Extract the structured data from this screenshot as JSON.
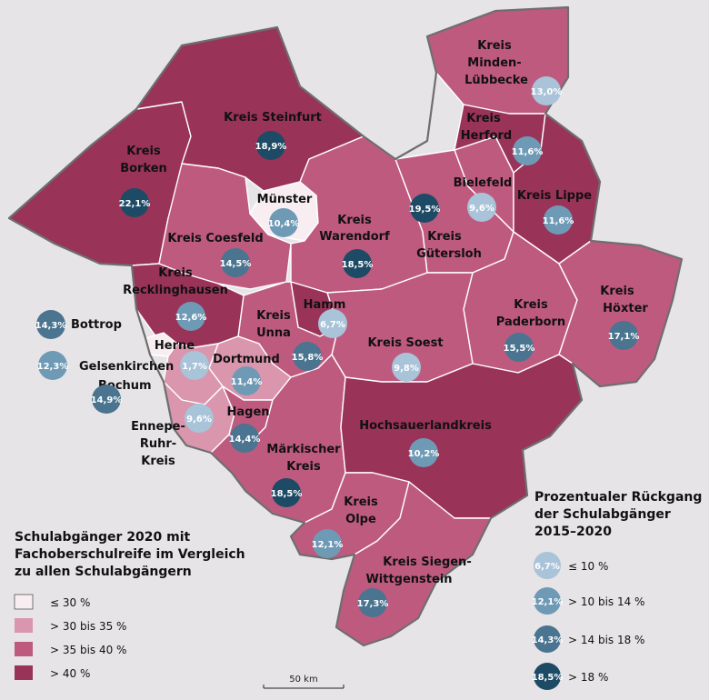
{
  "colors": {
    "class_0": "#f8eef1",
    "class_1": "#d996ac",
    "class_2": "#bf5a7f",
    "class_3": "#9a3358",
    "bubble_0": "#a9c3d8",
    "bubble_1": "#6f9ab6",
    "bubble_2": "#4a748f",
    "bubble_3": "#1d4b66"
  },
  "regions": [
    {
      "name": "Kreis Steinfurt",
      "value": "18,9%"
    },
    {
      "name": "Kreis Borken",
      "value": "22,1%"
    },
    {
      "name": "Münster",
      "value": "10,4%"
    },
    {
      "name": "Kreis Coesfeld",
      "value": "14,5%"
    },
    {
      "name": "Kreis Warendorf",
      "value": "18,5%"
    },
    {
      "name": "Kreis Recklinghausen",
      "value": "12,6%"
    },
    {
      "name": "Kreis Unna",
      "value": "15,8%"
    },
    {
      "name": "Hamm",
      "value": "6,7%"
    },
    {
      "name": "Kreis Soest",
      "value": "9,8%"
    },
    {
      "name": "Dortmund",
      "value": "11,4%"
    },
    {
      "name": "Herne",
      "value": "1,7%"
    },
    {
      "name": "Bottrop",
      "value": "14,3%"
    },
    {
      "name": "Gelsenkirchen",
      "value": "12,3%"
    },
    {
      "name": "Bochum",
      "value": "14,9%"
    },
    {
      "name": "Hagen",
      "value": "14,4%"
    },
    {
      "name": "Ennepe-Ruhr-Kreis",
      "value": "9,6%"
    },
    {
      "name": "Märkischer Kreis",
      "value": "18,5%"
    },
    {
      "name": "Hochsauerlandkreis",
      "value": "10,2%"
    },
    {
      "name": "Kreis Olpe",
      "value": "12,1%"
    },
    {
      "name": "Kreis Siegen-Wittgenstein",
      "value": "17,3%"
    },
    {
      "name": "Kreis Minden-Lübbecke",
      "value": "13,0%"
    },
    {
      "name": "Kreis Herford",
      "value": "11,6%"
    },
    {
      "name": "Bielefeld",
      "value": "9,6%"
    },
    {
      "name": "Kreis Gütersloh",
      "value": "19,5%"
    },
    {
      "name": "Kreis Lippe",
      "value": "11,6%"
    },
    {
      "name": "Kreis Paderborn",
      "value": "15,5%"
    },
    {
      "name": "Kreis Höxter",
      "value": "17,1%"
    }
  ],
  "legend_left": {
    "title_lines": [
      "Schulabgänger 2020 mit",
      "Fachoberschulreife im Vergleich",
      "zu allen Schulabgängern"
    ],
    "items": [
      "≤ 30 %",
      "> 30 bis 35 %",
      "> 35 bis 40 %",
      "> 40 %"
    ]
  },
  "legend_right": {
    "title_lines": [
      "Prozentualer Rückgang",
      "der Schulabgänger",
      "2015–2020"
    ],
    "items": [
      {
        "value": "6,7%",
        "label": "≤ 10 %"
      },
      {
        "value": "12,1%",
        "label": "> 10 bis 14 %"
      },
      {
        "value": "14,3%",
        "label": "> 14 bis 18 %"
      },
      {
        "value": "18,5%",
        "label": "> 18 %"
      }
    ]
  },
  "scale": {
    "label": "50 km"
  }
}
